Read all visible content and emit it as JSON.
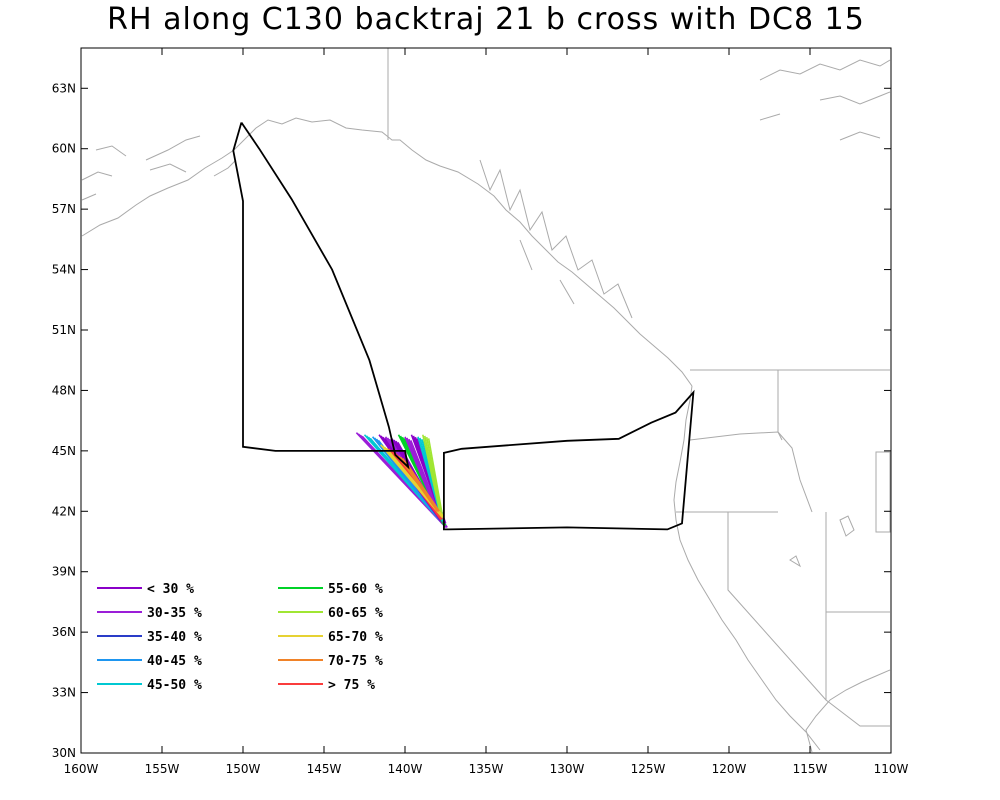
{
  "title": "RH along C130 backtraj 21 b cross with DC8 15",
  "axes": {
    "lon_range": [
      -160,
      -110
    ],
    "lat_range": [
      30,
      65
    ],
    "x_ticks": [
      {
        "value": -160,
        "label": "160W"
      },
      {
        "value": -155,
        "label": "155W"
      },
      {
        "value": -150,
        "label": "150W"
      },
      {
        "value": -145,
        "label": "145W"
      },
      {
        "value": -140,
        "label": "140W"
      },
      {
        "value": -135,
        "label": "135W"
      },
      {
        "value": -130,
        "label": "130W"
      },
      {
        "value": -125,
        "label": "125W"
      },
      {
        "value": -120,
        "label": "120W"
      },
      {
        "value": -115,
        "label": "115W"
      },
      {
        "value": -110,
        "label": "110W"
      }
    ],
    "y_ticks": [
      {
        "value": 30,
        "label": "30N"
      },
      {
        "value": 33,
        "label": "33N"
      },
      {
        "value": 36,
        "label": "36N"
      },
      {
        "value": 39,
        "label": "39N"
      },
      {
        "value": 42,
        "label": "42N"
      },
      {
        "value": 45,
        "label": "45N"
      },
      {
        "value": 48,
        "label": "48N"
      },
      {
        "value": 51,
        "label": "51N"
      },
      {
        "value": 54,
        "label": "54N"
      },
      {
        "value": 57,
        "label": "57N"
      },
      {
        "value": 60,
        "label": "60N"
      },
      {
        "value": 63,
        "label": "63N"
      }
    ]
  },
  "legend": [
    {
      "label": "< 30 %",
      "color": "#8a00c8"
    },
    {
      "label": "30-35 %",
      "color": "#9b1ed8"
    },
    {
      "label": "35-40 %",
      "color": "#2a3cc8"
    },
    {
      "label": "40-45 %",
      "color": "#1e96f0"
    },
    {
      "label": "45-50 %",
      "color": "#00c8d2"
    },
    {
      "label": "55-60 %",
      "color": "#00d228"
    },
    {
      "label": "60-65 %",
      "color": "#a0e632"
    },
    {
      "label": "65-70 %",
      "color": "#e6d232"
    },
    {
      "label": "70-75 %",
      "color": "#f08228"
    },
    {
      "label": "> 75 %",
      "color": "#fa3c3c"
    }
  ],
  "flight_track": [
    [
      -150.1,
      61.3
    ],
    [
      -150.6,
      59.9
    ],
    [
      -150.0,
      57.4
    ],
    [
      -150.0,
      54.4
    ],
    [
      -150.0,
      45.2
    ],
    [
      -148.0,
      45.0
    ],
    [
      -144.0,
      45.0
    ],
    [
      -140.0,
      45.0
    ],
    [
      -139.8,
      44.2
    ],
    [
      -140.6,
      44.8
    ],
    [
      -141.0,
      46.2
    ],
    [
      -142.2,
      49.5
    ],
    [
      -144.5,
      54.0
    ],
    [
      -147.0,
      57.5
    ],
    [
      -149.0,
      60.0
    ],
    [
      -150.1,
      61.3
    ]
  ],
  "flight_track_2": [
    [
      -137.3,
      41.1
    ],
    [
      -137.6,
      41.1
    ],
    [
      -137.6,
      44.9
    ],
    [
      -136.5,
      45.1
    ],
    [
      -130.0,
      45.5
    ],
    [
      -126.8,
      45.6
    ],
    [
      -124.8,
      46.4
    ],
    [
      -123.3,
      46.9
    ],
    [
      -122.2,
      47.9
    ],
    [
      -122.9,
      41.4
    ],
    [
      -123.8,
      41.1
    ],
    [
      -130.0,
      41.2
    ],
    [
      -137.3,
      41.1
    ]
  ],
  "trajectories": [
    {
      "start": [
        -143.0,
        45.9
      ],
      "end": [
        -137.6,
        41.3
      ],
      "color": "#9b1ed8"
    },
    {
      "start": [
        -142.5,
        45.8
      ],
      "end": [
        -137.8,
        41.5
      ],
      "color": "#00c8d2"
    },
    {
      "start": [
        -142.0,
        45.7
      ],
      "end": [
        -137.9,
        41.6
      ],
      "color": "#1e96f0"
    },
    {
      "start": [
        -141.6,
        45.8
      ],
      "end": [
        -137.7,
        41.4
      ],
      "color": "#8a00c8"
    },
    {
      "start": [
        -141.2,
        45.7
      ],
      "end": [
        -137.5,
        41.2
      ],
      "color": "#9b1ed8"
    },
    {
      "start": [
        -140.8,
        45.6
      ],
      "end": [
        -137.8,
        41.5
      ],
      "color": "#8a00c8"
    },
    {
      "start": [
        -140.4,
        45.8
      ],
      "end": [
        -137.6,
        41.3
      ],
      "color": "#00d228"
    },
    {
      "start": [
        -140.0,
        45.7
      ],
      "end": [
        -137.9,
        41.7
      ],
      "color": "#9b1ed8"
    },
    {
      "start": [
        -139.6,
        45.8
      ],
      "end": [
        -137.6,
        41.4
      ],
      "color": "#8a00c8"
    },
    {
      "start": [
        -139.2,
        45.7
      ],
      "end": [
        -137.7,
        41.5
      ],
      "color": "#00c8d2"
    },
    {
      "start": [
        -138.9,
        45.8
      ],
      "end": [
        -137.8,
        41.8
      ],
      "color": "#a0e632"
    },
    {
      "start": [
        -140.5,
        44.8
      ],
      "end": [
        -137.9,
        41.9
      ],
      "color": "#f08228"
    },
    {
      "start": [
        -141.0,
        45.1
      ],
      "end": [
        -137.8,
        41.6
      ],
      "color": "#fa3c3c"
    },
    {
      "start": [
        -141.5,
        45.3
      ],
      "end": [
        -137.7,
        41.7
      ],
      "color": "#e6d232"
    },
    {
      "start": [
        -140.2,
        44.5
      ],
      "end": [
        -138.0,
        42.0
      ],
      "color": "#f08228"
    }
  ]
}
